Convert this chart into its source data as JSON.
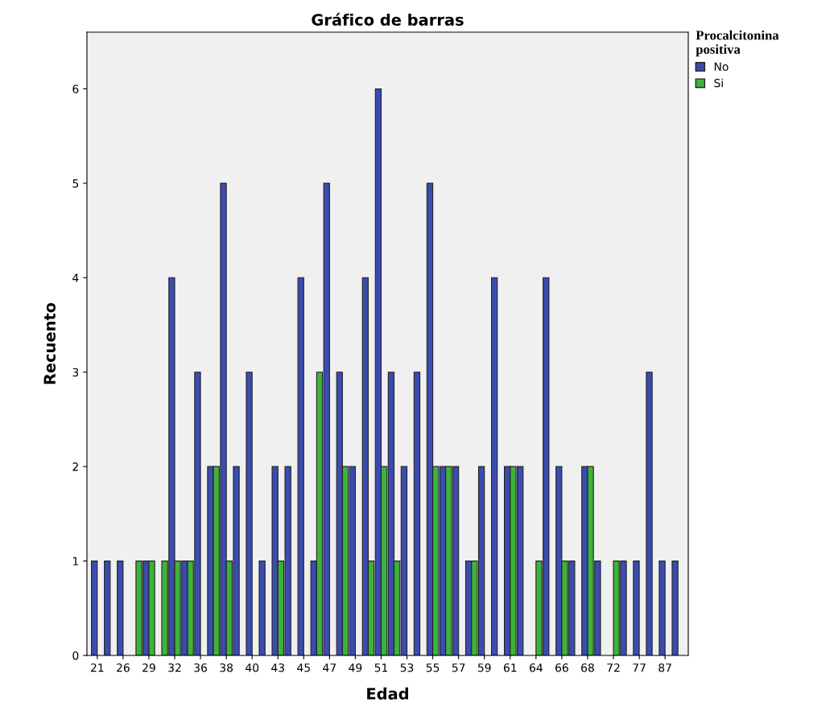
{
  "chart_data": {
    "type": "bar",
    "title": "Gráfico de barras",
    "xlabel": "Edad",
    "ylabel": "Recuento",
    "legend_title": "Procalcitonina positiva",
    "categories": [
      "21",
      null,
      "26",
      null,
      "29",
      null,
      "32",
      null,
      "36",
      null,
      "38",
      null,
      "40",
      null,
      "43",
      null,
      "45",
      null,
      "47",
      null,
      "49",
      null,
      "51",
      null,
      "53",
      null,
      "55",
      null,
      "57",
      null,
      "59",
      null,
      "61",
      null,
      "64",
      null,
      "66",
      null,
      "68",
      null,
      "72",
      null,
      "77",
      null,
      "87",
      null
    ],
    "series": [
      {
        "name": "No",
        "color": "#3b4cb0",
        "values": [
          1,
          1,
          1,
          null,
          1,
          null,
          4,
          1,
          3,
          2,
          5,
          2,
          3,
          1,
          2,
          2,
          4,
          1,
          5,
          3,
          2,
          4,
          6,
          3,
          2,
          3,
          5,
          2,
          2,
          1,
          2,
          4,
          2,
          2,
          null,
          4,
          2,
          1,
          2,
          1,
          null,
          1,
          1,
          3,
          1,
          1
        ]
      },
      {
        "name": "Si",
        "color": "#3cb43c",
        "values": [
          null,
          null,
          null,
          1,
          1,
          1,
          1,
          1,
          null,
          2,
          1,
          null,
          null,
          null,
          1,
          null,
          null,
          3,
          null,
          2,
          null,
          1,
          2,
          1,
          null,
          null,
          2,
          2,
          null,
          1,
          null,
          null,
          2,
          null,
          1,
          null,
          1,
          null,
          2,
          null,
          1,
          null,
          null,
          null,
          null,
          null
        ]
      }
    ],
    "ylim": [
      0,
      6.6
    ],
    "yticks": [
      0,
      1,
      2,
      3,
      4,
      5,
      6
    ],
    "grid": false,
    "legend": "top right"
  }
}
